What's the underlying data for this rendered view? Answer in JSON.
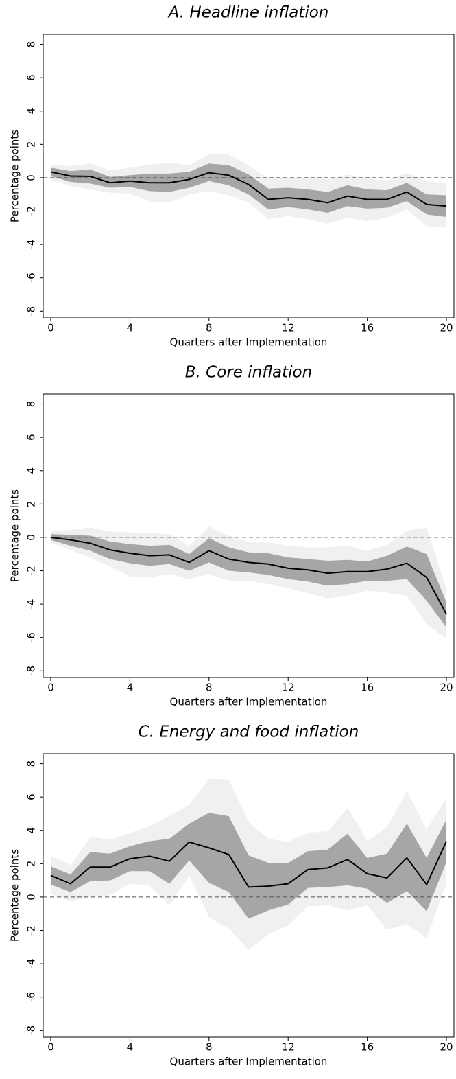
{
  "chart_data": [
    {
      "type": "line",
      "title": "A. Headline inflation",
      "x_label": "Quarters after Implementation",
      "y_label": "Percentage points",
      "x": [
        0,
        1,
        2,
        3,
        4,
        5,
        6,
        7,
        8,
        9,
        10,
        11,
        12,
        13,
        14,
        15,
        16,
        17,
        18,
        19,
        20
      ],
      "values": [
        0.35,
        0.1,
        0.08,
        -0.3,
        -0.2,
        -0.3,
        -0.3,
        -0.1,
        0.3,
        0.15,
        -0.4,
        -1.3,
        -1.2,
        -1.3,
        -1.5,
        -1.1,
        -1.3,
        -1.3,
        -0.85,
        -1.6,
        -1.7
      ],
      "color": "#000000",
      "bands": [
        {
          "color": "#f0f0f0",
          "lower": [
            -0.1,
            -0.5,
            -0.7,
            -0.9,
            -0.95,
            -1.4,
            -1.5,
            -1,
            -0.8,
            -1.05,
            -1.5,
            -2.5,
            -2.3,
            -2.5,
            -2.75,
            -2.4,
            -2.6,
            -2.4,
            -1.9,
            -2.9,
            -3
          ],
          "upper": [
            0.8,
            0.7,
            0.85,
            0.45,
            0.6,
            0.8,
            0.9,
            0.75,
            1.4,
            1.4,
            0.75,
            -0.05,
            -0.05,
            0.05,
            -0.1,
            0.2,
            -0.05,
            -0.15,
            0.3,
            -0.2,
            -0.35
          ]
        },
        {
          "color": "#a6a6a6",
          "lower": [
            0.1,
            -0.25,
            -0.35,
            -0.6,
            -0.55,
            -0.8,
            -0.85,
            -0.6,
            -0.2,
            -0.45,
            -1,
            -1.9,
            -1.75,
            -1.9,
            -2.1,
            -1.7,
            -1.85,
            -1.8,
            -1.4,
            -2.2,
            -2.35
          ],
          "upper": [
            0.6,
            0.4,
            0.5,
            0.05,
            0.15,
            0.25,
            0.25,
            0.35,
            0.85,
            0.75,
            0.2,
            -0.65,
            -0.6,
            -0.7,
            -0.85,
            -0.45,
            -0.7,
            -0.75,
            -0.3,
            -1,
            -1.05
          ]
        }
      ],
      "hline": 0,
      "xlim": [
        -0.38,
        20.38
      ],
      "xticks": [
        0,
        4,
        8,
        12,
        16,
        20
      ],
      "ylim": [
        -8.4,
        8.6
      ],
      "yticks": [
        -8,
        -6,
        -4,
        -2,
        0,
        2,
        4,
        6,
        8
      ]
    },
    {
      "type": "line",
      "title": "B. Core inflation",
      "x_label": "Quarters after Implementation",
      "y_label": "Percentage points",
      "x": [
        0,
        1,
        2,
        3,
        4,
        5,
        6,
        7,
        8,
        9,
        10,
        11,
        12,
        13,
        14,
        15,
        16,
        17,
        18,
        19,
        20
      ],
      "values": [
        0,
        -0.15,
        -0.35,
        -0.75,
        -0.95,
        -1.1,
        -1.05,
        -1.5,
        -0.8,
        -1.3,
        -1.5,
        -1.6,
        -1.85,
        -1.95,
        -2.15,
        -2.05,
        -2.05,
        -1.9,
        -1.55,
        -2.4,
        -4.6
      ],
      "color": "#000000",
      "bands": [
        {
          "color": "#f0f0f0",
          "lower": [
            -0.3,
            -0.75,
            -1.2,
            -1.75,
            -2.35,
            -2.4,
            -2.2,
            -2.5,
            -2.2,
            -2.6,
            -2.6,
            -2.8,
            -3.05,
            -3.35,
            -3.65,
            -3.5,
            -3.2,
            -3.3,
            -3.5,
            -5.2,
            -6.1
          ],
          "upper": [
            0.35,
            0.45,
            0.6,
            0.35,
            0.3,
            0.25,
            0.2,
            -0.5,
            0.65,
            0.1,
            -0.3,
            -0.3,
            -0.5,
            -0.6,
            -0.6,
            -0.5,
            -0.8,
            -0.45,
            0.4,
            0.6,
            -3.1
          ]
        },
        {
          "color": "#a6a6a6",
          "lower": [
            -0.15,
            -0.5,
            -0.8,
            -1.3,
            -1.55,
            -1.7,
            -1.6,
            -2,
            -1.5,
            -2,
            -2.1,
            -2.25,
            -2.5,
            -2.65,
            -2.9,
            -2.8,
            -2.6,
            -2.6,
            -2.5,
            -3.8,
            -5.4
          ],
          "upper": [
            0.2,
            0.15,
            0.1,
            -0.25,
            -0.4,
            -0.5,
            -0.45,
            -1,
            -0.05,
            -0.6,
            -0.9,
            -0.95,
            -1.2,
            -1.3,
            -1.4,
            -1.35,
            -1.45,
            -1.1,
            -0.55,
            -1,
            -3.9
          ]
        }
      ],
      "hline": 0,
      "xlim": [
        -0.38,
        20.38
      ],
      "xticks": [
        0,
        4,
        8,
        12,
        16,
        20
      ],
      "ylim": [
        -8.4,
        8.6
      ],
      "yticks": [
        -8,
        -6,
        -4,
        -2,
        0,
        2,
        4,
        6,
        8
      ]
    },
    {
      "type": "line",
      "title": "C. Energy and food inflation",
      "x_label": "Quarters after Implementation",
      "y_label": "Percentage points",
      "x": [
        0,
        1,
        2,
        3,
        4,
        5,
        6,
        7,
        8,
        9,
        10,
        11,
        12,
        13,
        14,
        15,
        16,
        17,
        18,
        19,
        20
      ],
      "values": [
        1.3,
        0.8,
        1.8,
        1.8,
        2.3,
        2.45,
        2.15,
        3.3,
        2.95,
        2.55,
        0.6,
        0.65,
        0.8,
        1.65,
        1.75,
        2.25,
        1.4,
        1.15,
        2.35,
        0.75,
        3.35
      ],
      "color": "#000000",
      "bands": [
        {
          "color": "#f0f0f0",
          "lower": [
            0.2,
            -0.25,
            0,
            0.1,
            0.8,
            0.7,
            -0.5,
            1.3,
            -1.2,
            -1.9,
            -3.15,
            -2.25,
            -1.7,
            -0.55,
            -0.5,
            -0.8,
            -0.5,
            -1.95,
            -1.65,
            -2.45,
            0.8
          ],
          "upper": [
            2.5,
            1.9,
            3.6,
            3.45,
            3.85,
            4.25,
            4.85,
            5.55,
            7.1,
            7.05,
            4.5,
            3.5,
            3.3,
            3.85,
            3.95,
            5.35,
            3.35,
            4.2,
            6.35,
            4.05,
            5.95
          ]
        },
        {
          "color": "#a6a6a6",
          "lower": [
            0.75,
            0.3,
            0.95,
            1,
            1.55,
            1.55,
            0.8,
            2.2,
            0.85,
            0.3,
            -1.3,
            -0.8,
            -0.45,
            0.55,
            0.6,
            0.7,
            0.5,
            -0.35,
            0.35,
            -0.85,
            2.1
          ],
          "upper": [
            1.85,
            1.35,
            2.7,
            2.6,
            3.05,
            3.35,
            3.5,
            4.4,
            5.05,
            4.85,
            2.5,
            2.05,
            2.05,
            2.75,
            2.85,
            3.8,
            2.35,
            2.6,
            4.4,
            2.35,
            4.65
          ]
        }
      ],
      "hline": 0,
      "xlim": [
        -0.38,
        20.38
      ],
      "xticks": [
        0,
        4,
        8,
        12,
        16,
        20
      ],
      "ylim": [
        -8.4,
        8.6
      ],
      "yticks": [
        -8,
        -6,
        -4,
        -2,
        0,
        2,
        4,
        6,
        8
      ]
    }
  ]
}
